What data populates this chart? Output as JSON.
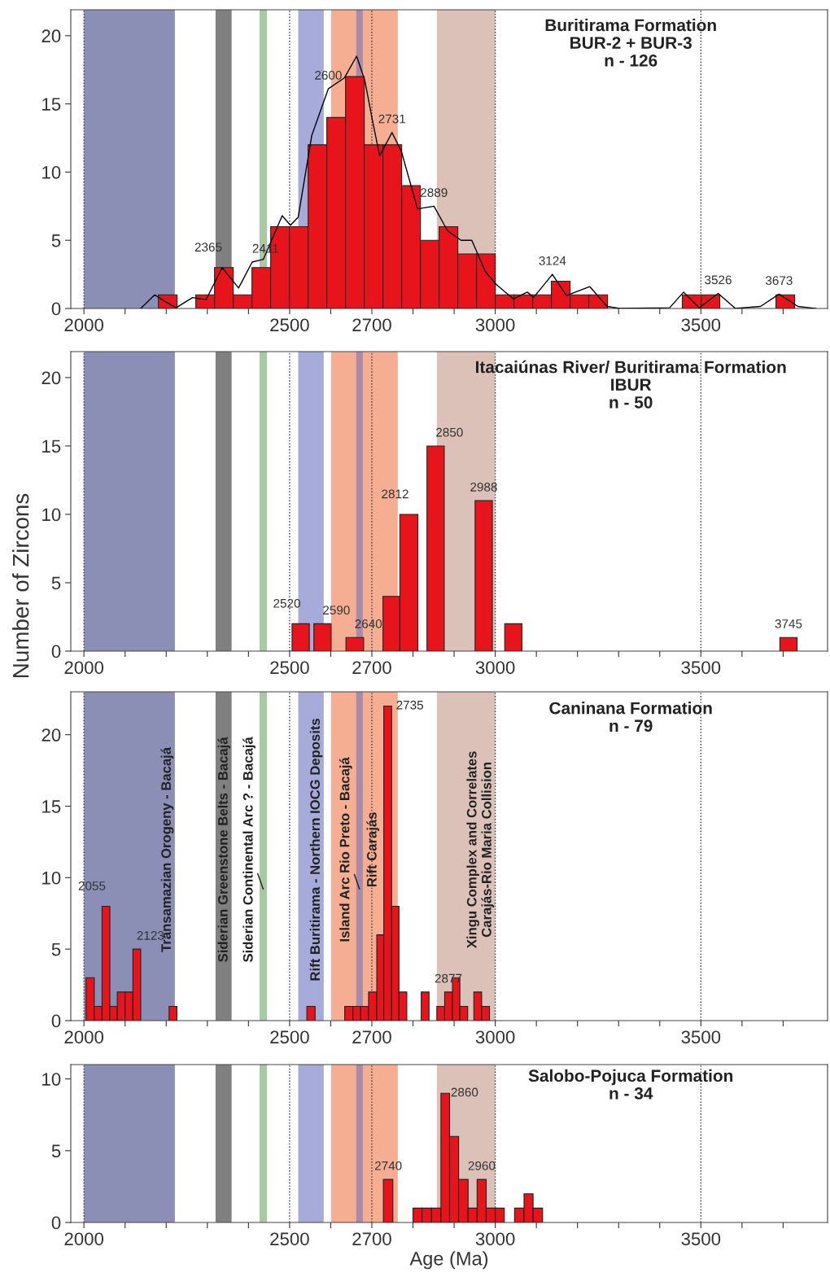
{
  "chart_data": [
    {
      "type": "histogram",
      "title": "Buritirama Formation\nBUR-2 + BUR-3\nn - 126",
      "color": "#e8141c",
      "bins": [
        2181,
        2226.5,
        2272,
        2317.5,
        2363,
        2408.5,
        2454,
        2499.5,
        2545,
        2590.5,
        2636,
        2681.5,
        2727,
        2772.5,
        2818,
        2863.5,
        2909,
        2954.5,
        3000,
        3045.5,
        3091,
        3136.5,
        3182,
        3227.5,
        3273,
        3318.5,
        3364,
        3409.5,
        3455,
        3500.5,
        3546,
        3591.5,
        3637,
        3682.5,
        3728
      ],
      "values": [
        1,
        0,
        1,
        3,
        1,
        3,
        6,
        6,
        12,
        14,
        17,
        12,
        12,
        9,
        5,
        6,
        4,
        4,
        1,
        1,
        1,
        2,
        1,
        1,
        0,
        0,
        0,
        0,
        1,
        1,
        0,
        0,
        0,
        1
      ],
      "series": [
        {
          "type": "line",
          "color": "#000000",
          "x": [
            2138,
            2172,
            2198,
            2224,
            2264,
            2297,
            2336,
            2376,
            2409,
            2436,
            2482,
            2502,
            2521,
            2554,
            2594,
            2633,
            2663,
            2683,
            2702,
            2719,
            2749,
            2772,
            2811,
            2851,
            2884,
            2917,
            2943,
            2976,
            3003,
            3044,
            3078,
            3093,
            3139,
            3173,
            3230,
            3272,
            3302,
            3424,
            3458,
            3496,
            3542,
            3584,
            3645,
            3690,
            3736,
            3780
          ],
          "values": [
            0,
            1.0,
            0.5,
            0.05,
            0.8,
            0.65,
            3.0,
            1.5,
            3.4,
            3.6,
            6.8,
            6.1,
            6.7,
            12.7,
            16.1,
            16.9,
            18.5,
            16.7,
            13.7,
            11.2,
            12.9,
            11.5,
            7.3,
            7.5,
            5.7,
            5.0,
            5.0,
            2.7,
            1.75,
            0.7,
            1.2,
            0.8,
            2.5,
            0.95,
            1.6,
            0.15,
            0,
            0.05,
            1.2,
            0.05,
            1.1,
            0,
            0.15,
            1.05,
            0.15,
            0
          ]
        }
      ],
      "annotations": [
        {
          "text": "2365",
          "x": 2336,
          "y": 3.0
        },
        {
          "text": "2411",
          "x": 2409,
          "y": 3.4
        },
        {
          "text": "2600",
          "x": 2594,
          "y": 16.1
        },
        {
          "text": "2731",
          "x": 2749,
          "y": 12.9
        },
        {
          "text": "2889",
          "x": 2851,
          "y": 7.5
        },
        {
          "text": "3124",
          "x": 3139,
          "y": 2.5
        },
        {
          "text": "3526",
          "x": 3542,
          "y": 1.1
        },
        {
          "text": "3673",
          "x": 3690,
          "y": 1.05
        }
      ],
      "xlim": [
        1968,
        3808
      ],
      "ylim": [
        0,
        21.9
      ],
      "xticks": [
        2000,
        {
          "value": 2100,
          "label": null
        },
        {
          "value": 2200,
          "label": null
        },
        {
          "value": 2300,
          "label": null
        },
        {
          "value": 2400,
          "label": null
        },
        2500,
        {
          "value": 2600,
          "label": null
        },
        2700,
        {
          "value": 2800,
          "label": null
        },
        {
          "value": 2900,
          "label": null
        },
        3000,
        {
          "value": 3100,
          "label": null
        },
        {
          "value": 3200,
          "label": null
        },
        {
          "value": 3300,
          "label": null
        },
        {
          "value": 3400,
          "label": null
        },
        3500,
        {
          "value": 3600,
          "label": null
        },
        {
          "value": 3700,
          "label": null
        }
      ],
      "yticks": [
        0,
        5,
        10,
        15,
        20
      ],
      "bands": [
        {
          "axis": "x",
          "from": 2000,
          "to": 2221,
          "color": "#8c8fb5"
        },
        {
          "axis": "x",
          "from": 2320,
          "to": 2359,
          "color": "#808080"
        },
        {
          "axis": "x",
          "from": 2427,
          "to": 2445,
          "color": "#a9c9a4"
        },
        {
          "axis": "x",
          "from": 2521,
          "to": 2583,
          "color": "#a6abda"
        },
        {
          "axis": "x",
          "from": 2601,
          "to": 2763,
          "color": "#f6ae93"
        },
        {
          "axis": "x",
          "from": 2662,
          "to": 2678,
          "color": "#a98aa8"
        },
        {
          "axis": "x",
          "from": 2858,
          "to": 3000,
          "color": "#dbc1b8"
        }
      ],
      "ref_lines": [
        {
          "axis": "x",
          "value": 2000,
          "line_style": "dotted",
          "color": "#333333"
        },
        {
          "axis": "x",
          "value": 2500,
          "line_style": "dotted",
          "color": "#333333"
        },
        {
          "axis": "x",
          "value": 2700,
          "line_style": "dotted",
          "color": "#333333"
        },
        {
          "axis": "x",
          "value": 3000,
          "line_style": "dotted",
          "color": "#333333"
        },
        {
          "axis": "x",
          "value": 3500,
          "line_style": "dotted",
          "color": "#333333"
        }
      ],
      "grid": false,
      "legend": false
    },
    {
      "type": "histogram",
      "title": "Itacaiúnas River/ Buritirama Formation\nIBUR\nn - 50",
      "ylabel": "Number of Zircons",
      "color": "#e8141c",
      "bins": [
        2506,
        2548,
        2559,
        2601,
        2637,
        2680,
        2727,
        2768,
        2812,
        2834,
        2876,
        2951,
        2993,
        3023,
        3065,
        3692,
        3734
      ],
      "values": [
        2,
        0,
        2,
        0,
        1,
        0,
        4,
        10,
        0,
        15,
        0,
        11,
        0,
        2,
        0,
        1
      ],
      "annotations": [
        {
          "text": "2520",
          "x": 2527,
          "y": 2
        },
        {
          "text": "2590",
          "x": 2580,
          "y": 2
        },
        {
          "text": "2640",
          "x": 2658,
          "y": 1
        },
        {
          "text": "2812",
          "x": 2790,
          "y": 10
        },
        {
          "text": "2850",
          "x": 2855,
          "y": 15
        },
        {
          "text": "2988",
          "x": 2972,
          "y": 11
        },
        {
          "text": "3745",
          "x": 3713,
          "y": 1
        }
      ],
      "xlim": [
        1968,
        3808
      ],
      "ylim": [
        0,
        21.9
      ],
      "xticks": [
        2000,
        {
          "value": 2100,
          "label": null
        },
        {
          "value": 2200,
          "label": null
        },
        {
          "value": 2300,
          "label": null
        },
        {
          "value": 2400,
          "label": null
        },
        2500,
        {
          "value": 2600,
          "label": null
        },
        2700,
        {
          "value": 2800,
          "label": null
        },
        {
          "value": 2900,
          "label": null
        },
        3000,
        {
          "value": 3100,
          "label": null
        },
        {
          "value": 3200,
          "label": null
        },
        {
          "value": 3300,
          "label": null
        },
        {
          "value": 3400,
          "label": null
        },
        3500,
        {
          "value": 3600,
          "label": null
        },
        {
          "value": 3700,
          "label": null
        }
      ],
      "yticks": [
        0,
        5,
        10,
        15,
        20
      ],
      "bands": [
        {
          "axis": "x",
          "from": 2000,
          "to": 2221,
          "color": "#8c8fb5"
        },
        {
          "axis": "x",
          "from": 2320,
          "to": 2359,
          "color": "#808080"
        },
        {
          "axis": "x",
          "from": 2427,
          "to": 2445,
          "color": "#a9c9a4"
        },
        {
          "axis": "x",
          "from": 2521,
          "to": 2583,
          "color": "#a6abda"
        },
        {
          "axis": "x",
          "from": 2601,
          "to": 2763,
          "color": "#f6ae93"
        },
        {
          "axis": "x",
          "from": 2662,
          "to": 2678,
          "color": "#a98aa8"
        },
        {
          "axis": "x",
          "from": 2858,
          "to": 3000,
          "color": "#dbc1b8"
        }
      ],
      "ref_lines": [
        {
          "axis": "x",
          "value": 2000,
          "line_style": "dotted",
          "color": "#333333"
        },
        {
          "axis": "x",
          "value": 2500,
          "line_style": "dotted",
          "color": "#333333"
        },
        {
          "axis": "x",
          "value": 2700,
          "line_style": "dotted",
          "color": "#333333"
        },
        {
          "axis": "x",
          "value": 3000,
          "line_style": "dotted",
          "color": "#333333"
        },
        {
          "axis": "x",
          "value": 3500,
          "line_style": "dotted",
          "color": "#333333"
        }
      ],
      "grid": false,
      "legend": false
    },
    {
      "type": "histogram",
      "title": "Caninana Formation\nn - 79",
      "color": "#e8141c",
      "bins": [
        2005,
        2025,
        2044,
        2063,
        2081,
        2100,
        2119,
        2138,
        2207,
        2226,
        2542,
        2562,
        2634,
        2654,
        2673,
        2692,
        2712,
        2729,
        2748,
        2766,
        2785,
        2820,
        2839,
        2858,
        2877,
        2896,
        2914,
        2933,
        2948,
        2967,
        2986
      ],
      "values": [
        3,
        1,
        8,
        1,
        2,
        2,
        5,
        0,
        1,
        0,
        1,
        0,
        1,
        1,
        1,
        2,
        6,
        22,
        8,
        2,
        0,
        2,
        0,
        1,
        2,
        3,
        1,
        0,
        2,
        1
      ],
      "annotations": [
        {
          "text": "2055",
          "x": 2053,
          "y": 8
        },
        {
          "text": "2123",
          "x": 2128,
          "y": 5
        },
        {
          "text": "2735",
          "x": 2745,
          "y": 22
        },
        {
          "text": "2877",
          "x": 2886,
          "y": 2
        }
      ],
      "xlim": [
        1968,
        3808
      ],
      "ylim": [
        0,
        23.0
      ],
      "xticks": [
        2000,
        {
          "value": 2100,
          "label": null
        },
        {
          "value": 2200,
          "label": null
        },
        {
          "value": 2300,
          "label": null
        },
        {
          "value": 2400,
          "label": null
        },
        2500,
        {
          "value": 2600,
          "label": null
        },
        2700,
        {
          "value": 2800,
          "label": null
        },
        {
          "value": 2900,
          "label": null
        },
        3000,
        {
          "value": 3100,
          "label": null
        },
        {
          "value": 3200,
          "label": null
        },
        {
          "value": 3300,
          "label": null
        },
        {
          "value": 3400,
          "label": null
        },
        3500,
        {
          "value": 3600,
          "label": null
        },
        {
          "value": 3700,
          "label": null
        }
      ],
      "yticks": [
        0,
        5,
        10,
        15,
        20
      ],
      "bands": [
        {
          "axis": "x",
          "from": 2000,
          "to": 2221,
          "color": "#8c8fb5",
          "label": "Transamazian Orogeny - Bacajá"
        },
        {
          "axis": "x",
          "from": 2320,
          "to": 2359,
          "color": "#808080",
          "label": "Siderian Greenstone Belts - Bacajá"
        },
        {
          "axis": "x",
          "from": 2427,
          "to": 2445,
          "color": "#a9c9a4",
          "label": "Siderian Continental Arc ? - Bacajá"
        },
        {
          "axis": "x",
          "from": 2521,
          "to": 2583,
          "color": "#a6abda",
          "label": "Rift Buritirama - Northern IOCG Deposits"
        },
        {
          "axis": "x",
          "from": 2601,
          "to": 2763,
          "color": "#f6ae93",
          "label": "Rift Carajás"
        },
        {
          "axis": "x",
          "from": 2662,
          "to": 2678,
          "color": "#a98aa8",
          "label": "Island Arc Rio Preto - Bacajá"
        },
        {
          "axis": "x",
          "from": 2858,
          "to": 3000,
          "color": "#dbc1b8",
          "label": "Xingu Complex and Correlates\nCarajás-Rio Maria Collision"
        }
      ],
      "ref_lines": [
        {
          "axis": "x",
          "value": 2000,
          "line_style": "dotted",
          "color": "#333333"
        },
        {
          "axis": "x",
          "value": 2500,
          "line_style": "dotted",
          "color": "#333333"
        },
        {
          "axis": "x",
          "value": 2700,
          "line_style": "dotted",
          "color": "#333333"
        },
        {
          "axis": "x",
          "value": 3000,
          "line_style": "dotted",
          "color": "#333333"
        },
        {
          "axis": "x",
          "value": 3500,
          "line_style": "dotted",
          "color": "#333333"
        }
      ],
      "grid": false,
      "legend": false
    },
    {
      "type": "histogram",
      "title": "Salobo-Pojuca Formation\nn - 34",
      "xlabel": "Age (Ma)",
      "color": "#e8141c",
      "bins": [
        2728,
        2751,
        2800,
        2822,
        2845,
        2868,
        2889,
        2911,
        2934,
        2956,
        2978,
        3000,
        3022,
        3047,
        3070,
        3092,
        3115
      ],
      "values": [
        3,
        0,
        1,
        1,
        1,
        9,
        6,
        3,
        1,
        3,
        1,
        1,
        0,
        1,
        2,
        1
      ],
      "annotations": [
        {
          "text": "2740",
          "x": 2740,
          "y": 3
        },
        {
          "text": "2860",
          "x": 2878,
          "y": 9
        },
        {
          "text": "2960",
          "x": 2967,
          "y": 3
        }
      ],
      "xlim": [
        1968,
        3808
      ],
      "ylim": [
        0,
        11.0
      ],
      "xticks": [
        2000,
        {
          "value": 2100,
          "label": null
        },
        {
          "value": 2200,
          "label": null
        },
        {
          "value": 2300,
          "label": null
        },
        {
          "value": 2400,
          "label": null
        },
        2500,
        {
          "value": 2600,
          "label": null
        },
        2700,
        {
          "value": 2800,
          "label": null
        },
        {
          "value": 2900,
          "label": null
        },
        3000,
        {
          "value": 3100,
          "label": null
        },
        {
          "value": 3200,
          "label": null
        },
        {
          "value": 3300,
          "label": null
        },
        {
          "value": 3400,
          "label": null
        },
        3500,
        {
          "value": 3600,
          "label": null
        },
        {
          "value": 3700,
          "label": null
        }
      ],
      "yticks": [
        0,
        5,
        10
      ],
      "bands": [
        {
          "axis": "x",
          "from": 2000,
          "to": 2221,
          "color": "#8c8fb5"
        },
        {
          "axis": "x",
          "from": 2320,
          "to": 2359,
          "color": "#808080"
        },
        {
          "axis": "x",
          "from": 2427,
          "to": 2445,
          "color": "#a9c9a4"
        },
        {
          "axis": "x",
          "from": 2521,
          "to": 2583,
          "color": "#a6abda"
        },
        {
          "axis": "x",
          "from": 2601,
          "to": 2763,
          "color": "#f6ae93"
        },
        {
          "axis": "x",
          "from": 2662,
          "to": 2678,
          "color": "#a98aa8"
        },
        {
          "axis": "x",
          "from": 2858,
          "to": 3000,
          "color": "#dbc1b8"
        }
      ],
      "ref_lines": [
        {
          "axis": "x",
          "value": 2000,
          "line_style": "dotted",
          "color": "#333333"
        },
        {
          "axis": "x",
          "value": 2500,
          "line_style": "dotted",
          "color": "#333333"
        },
        {
          "axis": "x",
          "value": 2700,
          "line_style": "dotted",
          "color": "#333333"
        },
        {
          "axis": "x",
          "value": 3000,
          "line_style": "dotted",
          "color": "#333333"
        },
        {
          "axis": "x",
          "value": 3500,
          "line_style": "dotted",
          "color": "#333333"
        }
      ],
      "grid": false,
      "legend": false
    }
  ]
}
